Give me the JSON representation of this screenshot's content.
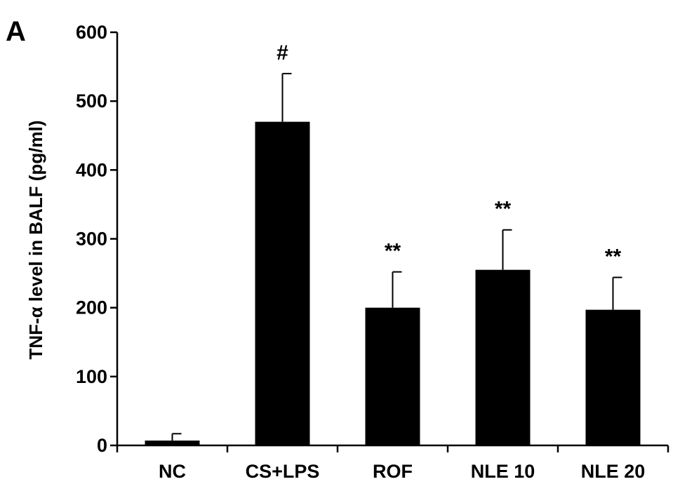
{
  "panel_label": "A",
  "chart_data": {
    "type": "bar",
    "title": "",
    "xlabel": "",
    "ylabel": "TNF-α level in BALF (pg/ml)",
    "ylim": [
      0,
      600
    ],
    "yticks": [
      0,
      100,
      200,
      300,
      400,
      500,
      600
    ],
    "categories": [
      "NC",
      "CS+LPS",
      "ROF",
      "NLE 10",
      "NLE 20"
    ],
    "values": [
      7,
      470,
      200,
      255,
      197
    ],
    "errors": [
      10,
      70,
      52,
      58,
      47
    ],
    "annotations": [
      "",
      "#",
      "**",
      "**",
      "**"
    ],
    "bar_color": "#000000",
    "grid": false,
    "legend": "none"
  }
}
